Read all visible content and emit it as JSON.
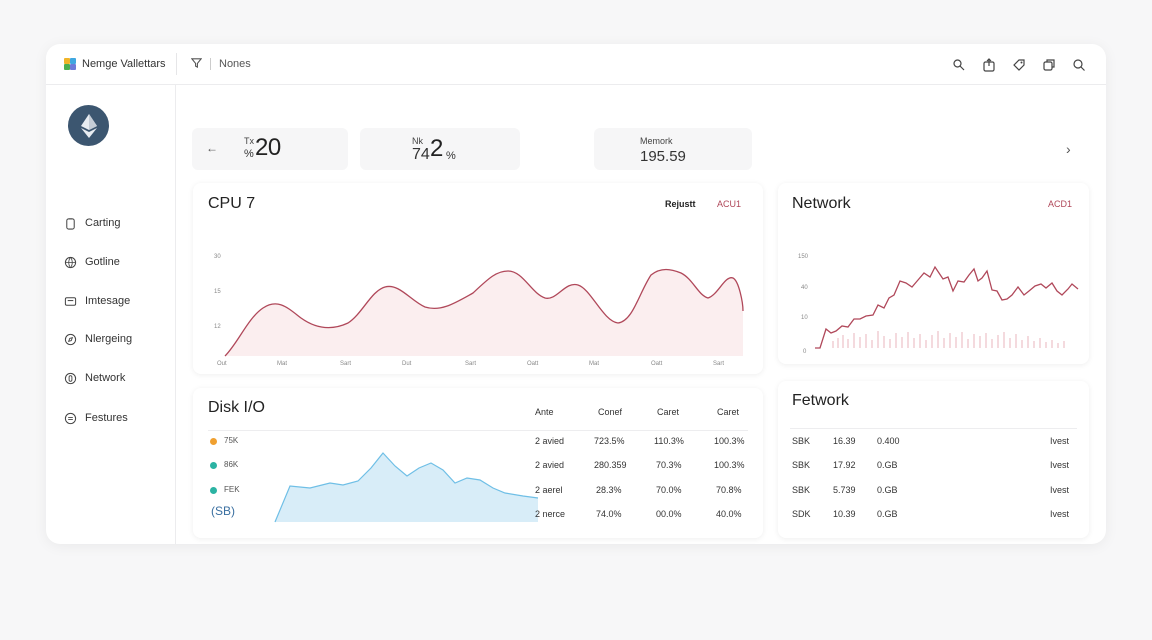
{
  "app": {
    "name": "Nemge Vallettars"
  },
  "breadcrumb": {
    "label": "Nones"
  },
  "toolbar_icons": [
    "search-alt-icon",
    "share-icon",
    "tag-icon",
    "copy-icon",
    "search-icon"
  ],
  "sidebar": {
    "items": [
      {
        "label": "Carting",
        "icon": "clipboard-icon"
      },
      {
        "label": "Gotline",
        "icon": "globe-icon"
      },
      {
        "label": "Imtesage",
        "icon": "message-icon"
      },
      {
        "label": "Nlergeing",
        "icon": "compass-icon"
      },
      {
        "label": "Network",
        "icon": "network-icon"
      },
      {
        "label": "Festures",
        "icon": "features-icon"
      }
    ]
  },
  "stats": [
    {
      "small": "Tx",
      "prefix": "%",
      "value": "20"
    },
    {
      "small": "Nk",
      "prefix": "74",
      "value": "2",
      "unit": "%"
    },
    {
      "small": "Memork",
      "value": "195.59"
    }
  ],
  "cpu_panel": {
    "title": "CPU 7",
    "tag1": "Rejustt",
    "tag2": "ACU1",
    "y_labels": [
      "30",
      "15",
      "12"
    ],
    "x_labels": [
      "Out",
      "Mat",
      "Sart",
      "Dut",
      "Sart",
      "Oatt",
      "Mat",
      "Oatt",
      "Sart"
    ]
  },
  "network_panel": {
    "title": "Network",
    "tag": "ACD1",
    "y_labels": [
      "150",
      "40",
      "10",
      "0"
    ]
  },
  "disk_panel": {
    "title": "Disk I/O",
    "legend": [
      {
        "label": "75K",
        "color": "#f0a030"
      },
      {
        "label": "86K",
        "color": "#2bb3a3"
      },
      {
        "label": "FEK",
        "color": "#2bb3a3"
      }
    ],
    "footer": "(SB)",
    "columns": [
      "Ante",
      "Conef",
      "Caret",
      "Caret"
    ],
    "rows": [
      [
        "2 avied",
        "723.5%",
        "110.3%",
        "100.3%"
      ],
      [
        "2 avied",
        "280.359",
        "70.3%",
        "100.3%"
      ],
      [
        "2 aerel",
        "28.3%",
        "70.0%",
        "70.8%"
      ],
      [
        "2 nerce",
        "74.0%",
        "00.0%",
        "40.0%"
      ]
    ]
  },
  "fetwork_panel": {
    "title": "Fetwork",
    "rows": [
      [
        "SBK",
        "16.39",
        "0.400",
        "Ivest"
      ],
      [
        "SBK",
        "17.92",
        "0.GB",
        "Ivest"
      ],
      [
        "SBK",
        "5.739",
        "0.GB",
        "Ivest"
      ],
      [
        "SDK",
        "10.39",
        "0.GB",
        "Ivest"
      ]
    ]
  },
  "colors": {
    "accent_red": "#b0485a",
    "disk_fill": "#d8edf8",
    "disk_line": "#6fbfe6"
  }
}
